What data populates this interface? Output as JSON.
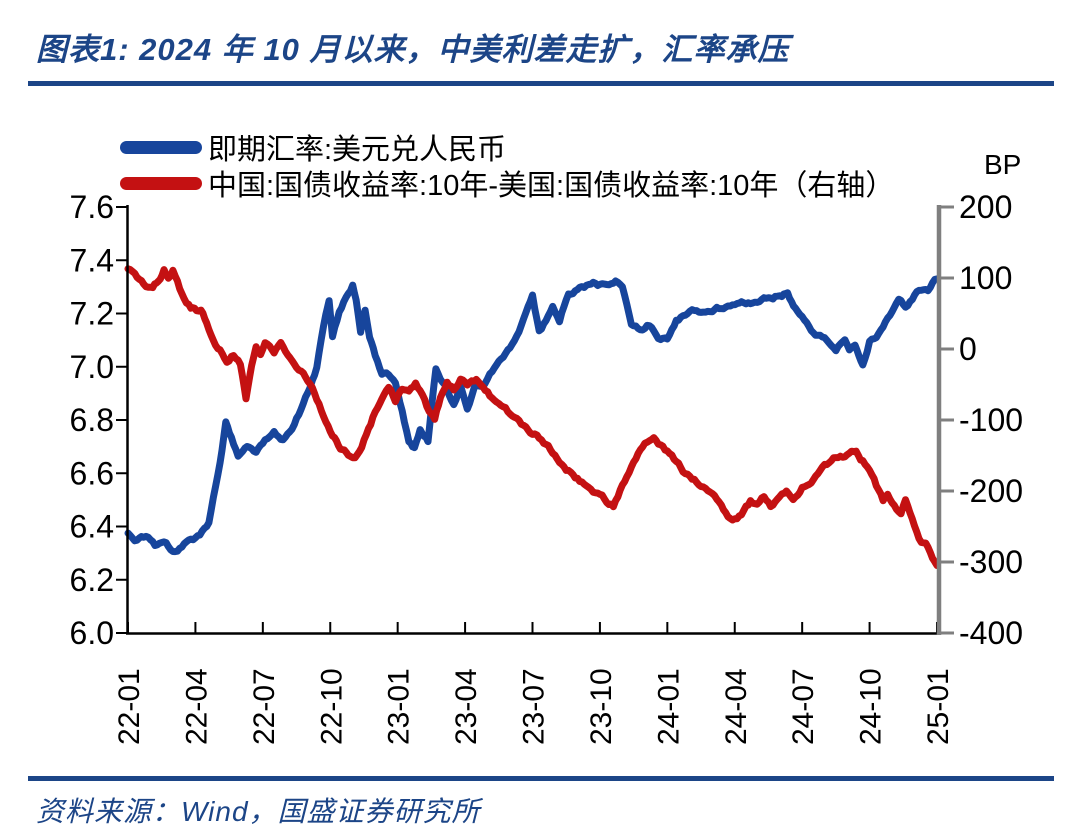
{
  "header": {
    "title": "图表1: 2024 年 10 月以来，中美利差走扩，汇率承压"
  },
  "footer": {
    "source": "资料来源：Wind，国盛证券研究所"
  },
  "colors": {
    "accent_navy": "#1C4587",
    "series_blue": "#17459C",
    "series_red": "#C41112",
    "right_axis_gray": "#7F7F7F",
    "axis_black": "#000000"
  },
  "chart_data": {
    "type": "line",
    "title": "图表1: 2024 年 10 月以来，中美利差走扩，汇率承压",
    "grid": false,
    "legend_position": "top-left",
    "x_unit": "months_since_2022_01",
    "x_max": 36,
    "x_ticks": [
      "22-01",
      "22-04",
      "22-07",
      "22-10",
      "23-01",
      "23-04",
      "23-07",
      "23-10",
      "24-01",
      "24-04",
      "24-07",
      "24-10",
      "25-01"
    ],
    "left_axis": {
      "min": 6.0,
      "max": 7.6,
      "ticks": [
        "7.6",
        "7.4",
        "7.2",
        "7.0",
        "6.8",
        "6.6",
        "6.4",
        "6.2",
        "6.0"
      ]
    },
    "right_axis": {
      "min": -400,
      "max": 200,
      "unit": "BP",
      "ticks": [
        "200",
        "100",
        "0",
        "-100",
        "-200",
        "-300",
        "-400"
      ]
    },
    "series": [
      {
        "name": "即期汇率:美元兑人民币",
        "axis": "left",
        "color": "#17459C",
        "points": [
          [
            0,
            6.37
          ],
          [
            0.4,
            6.35
          ],
          [
            0.8,
            6.36
          ],
          [
            1.2,
            6.33
          ],
          [
            1.6,
            6.34
          ],
          [
            2.0,
            6.31
          ],
          [
            2.4,
            6.33
          ],
          [
            2.8,
            6.36
          ],
          [
            3.2,
            6.37
          ],
          [
            3.6,
            6.42
          ],
          [
            3.9,
            6.55
          ],
          [
            4.1,
            6.65
          ],
          [
            4.35,
            6.79
          ],
          [
            4.6,
            6.73
          ],
          [
            4.9,
            6.66
          ],
          [
            5.3,
            6.7
          ],
          [
            5.7,
            6.68
          ],
          [
            6.1,
            6.72
          ],
          [
            6.5,
            6.76
          ],
          [
            6.9,
            6.73
          ],
          [
            7.3,
            6.78
          ],
          [
            7.7,
            6.84
          ],
          [
            8.0,
            6.9
          ],
          [
            8.4,
            7.0
          ],
          [
            8.8,
            7.2
          ],
          [
            8.95,
            7.25
          ],
          [
            9.1,
            7.12
          ],
          [
            9.4,
            7.21
          ],
          [
            9.7,
            7.27
          ],
          [
            10.0,
            7.31
          ],
          [
            10.15,
            7.26
          ],
          [
            10.35,
            7.14
          ],
          [
            10.55,
            7.22
          ],
          [
            10.75,
            7.11
          ],
          [
            11.0,
            7.04
          ],
          [
            11.3,
            6.97
          ],
          [
            11.6,
            6.97
          ],
          [
            11.9,
            6.94
          ],
          [
            12.2,
            6.83
          ],
          [
            12.5,
            6.72
          ],
          [
            12.75,
            6.7
          ],
          [
            13.0,
            6.76
          ],
          [
            13.35,
            6.72
          ],
          [
            13.7,
            6.99
          ],
          [
            14.1,
            6.93
          ],
          [
            14.5,
            6.85
          ],
          [
            14.8,
            6.92
          ],
          [
            15.1,
            6.84
          ],
          [
            15.5,
            6.94
          ],
          [
            15.8,
            6.92
          ],
          [
            16.1,
            6.96
          ],
          [
            16.5,
            7.02
          ],
          [
            17.0,
            7.07
          ],
          [
            17.4,
            7.14
          ],
          [
            18.0,
            7.26
          ],
          [
            18.3,
            7.13
          ],
          [
            18.6,
            7.17
          ],
          [
            18.9,
            7.23
          ],
          [
            19.2,
            7.17
          ],
          [
            19.6,
            7.28
          ],
          [
            20.0,
            7.29
          ],
          [
            20.4,
            7.3
          ],
          [
            20.8,
            7.31
          ],
          [
            21.3,
            7.3
          ],
          [
            21.7,
            7.32
          ],
          [
            22.0,
            7.31
          ],
          [
            22.4,
            7.16
          ],
          [
            22.8,
            7.14
          ],
          [
            23.2,
            7.16
          ],
          [
            23.6,
            7.12
          ],
          [
            24.0,
            7.11
          ],
          [
            24.4,
            7.18
          ],
          [
            24.8,
            7.2
          ],
          [
            25.2,
            7.21
          ],
          [
            25.7,
            7.2
          ],
          [
            26.2,
            7.22
          ],
          [
            26.7,
            7.23
          ],
          [
            27.2,
            7.24
          ],
          [
            27.7,
            7.24
          ],
          [
            28.2,
            7.25
          ],
          [
            28.7,
            7.26
          ],
          [
            29.1,
            7.27
          ],
          [
            29.35,
            7.28
          ],
          [
            29.7,
            7.22
          ],
          [
            30.1,
            7.17
          ],
          [
            30.5,
            7.13
          ],
          [
            31.0,
            7.1
          ],
          [
            31.5,
            7.06
          ],
          [
            31.9,
            7.11
          ],
          [
            32.1,
            7.06
          ],
          [
            32.35,
            7.08
          ],
          [
            32.7,
            7.01
          ],
          [
            33.0,
            7.1
          ],
          [
            33.3,
            7.12
          ],
          [
            33.6,
            7.15
          ],
          [
            34.0,
            7.2
          ],
          [
            34.3,
            7.24
          ],
          [
            34.6,
            7.22
          ],
          [
            35.0,
            7.27
          ],
          [
            35.3,
            7.29
          ],
          [
            35.6,
            7.28
          ],
          [
            36.0,
            7.33
          ]
        ]
      },
      {
        "name": "中国:国债收益率:10年-美国:国债收益率:10年（右轴）",
        "axis": "right",
        "color": "#C41112",
        "points": [
          [
            0,
            114
          ],
          [
            0.4,
            98
          ],
          [
            0.8,
            87
          ],
          [
            1.1,
            90
          ],
          [
            1.35,
            97
          ],
          [
            1.6,
            112
          ],
          [
            1.8,
            103
          ],
          [
            2.0,
            113
          ],
          [
            2.3,
            85
          ],
          [
            2.5,
            72
          ],
          [
            2.8,
            57
          ],
          [
            3.05,
            52
          ],
          [
            3.25,
            51
          ],
          [
            3.5,
            33
          ],
          [
            3.8,
            10
          ],
          [
            4.1,
            -2
          ],
          [
            4.4,
            -14
          ],
          [
            4.7,
            -4
          ],
          [
            5.0,
            -18
          ],
          [
            5.25,
            -66
          ],
          [
            5.5,
            -25
          ],
          [
            5.7,
            3
          ],
          [
            5.9,
            -8
          ],
          [
            6.1,
            7
          ],
          [
            6.5,
            -7
          ],
          [
            6.8,
            10
          ],
          [
            7.1,
            -3
          ],
          [
            7.5,
            -20
          ],
          [
            7.9,
            -38
          ],
          [
            8.3,
            -62
          ],
          [
            8.7,
            -95
          ],
          [
            9.1,
            -120
          ],
          [
            9.45,
            -140
          ],
          [
            9.8,
            -148
          ],
          [
            10.1,
            -155
          ],
          [
            10.4,
            -135
          ],
          [
            10.7,
            -112
          ],
          [
            11.0,
            -88
          ],
          [
            11.3,
            -70
          ],
          [
            11.6,
            -58
          ],
          [
            11.9,
            -75
          ],
          [
            12.2,
            -55
          ],
          [
            12.5,
            -63
          ],
          [
            12.8,
            -53
          ],
          [
            13.1,
            -68
          ],
          [
            13.4,
            -90
          ],
          [
            13.65,
            -104
          ],
          [
            13.9,
            -70
          ],
          [
            14.2,
            -50
          ],
          [
            14.5,
            -58
          ],
          [
            14.8,
            -45
          ],
          [
            15.1,
            -55
          ],
          [
            15.5,
            -48
          ],
          [
            15.9,
            -62
          ],
          [
            16.3,
            -72
          ],
          [
            16.7,
            -85
          ],
          [
            17.1,
            -96
          ],
          [
            17.5,
            -106
          ],
          [
            18.0,
            -116
          ],
          [
            18.5,
            -130
          ],
          [
            19.0,
            -148
          ],
          [
            19.4,
            -164
          ],
          [
            19.8,
            -177
          ],
          [
            20.2,
            -186
          ],
          [
            20.6,
            -196
          ],
          [
            21.0,
            -206
          ],
          [
            21.3,
            -214
          ],
          [
            21.6,
            -222
          ],
          [
            21.9,
            -201
          ],
          [
            22.2,
            -179
          ],
          [
            22.5,
            -158
          ],
          [
            22.8,
            -144
          ],
          [
            23.1,
            -134
          ],
          [
            23.4,
            -124
          ],
          [
            23.7,
            -136
          ],
          [
            24.0,
            -146
          ],
          [
            24.4,
            -161
          ],
          [
            24.8,
            -176
          ],
          [
            25.2,
            -186
          ],
          [
            25.6,
            -192
          ],
          [
            26.0,
            -200
          ],
          [
            26.4,
            -220
          ],
          [
            26.8,
            -236
          ],
          [
            27.1,
            -241
          ],
          [
            27.4,
            -228
          ],
          [
            27.7,
            -216
          ],
          [
            28.0,
            -224
          ],
          [
            28.3,
            -212
          ],
          [
            28.6,
            -226
          ],
          [
            29.0,
            -211
          ],
          [
            29.3,
            -200
          ],
          [
            29.6,
            -214
          ],
          [
            30.0,
            -196
          ],
          [
            30.4,
            -186
          ],
          [
            30.8,
            -172
          ],
          [
            31.2,
            -161
          ],
          [
            31.6,
            -152
          ],
          [
            32.0,
            -150
          ],
          [
            32.4,
            -146
          ],
          [
            32.7,
            -158
          ],
          [
            33.0,
            -172
          ],
          [
            33.3,
            -194
          ],
          [
            33.6,
            -214
          ],
          [
            33.8,
            -205
          ],
          [
            34.1,
            -218
          ],
          [
            34.4,
            -231
          ],
          [
            34.6,
            -209
          ],
          [
            34.9,
            -242
          ],
          [
            35.2,
            -267
          ],
          [
            35.5,
            -275
          ],
          [
            35.8,
            -293
          ],
          [
            36.0,
            -305
          ]
        ]
      }
    ]
  }
}
